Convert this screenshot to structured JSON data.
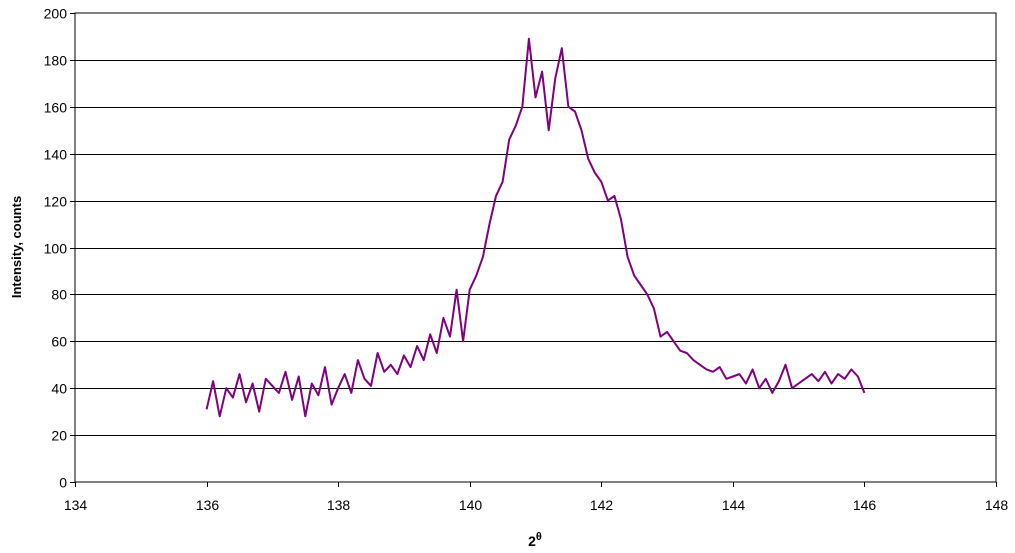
{
  "chart_data": {
    "type": "line",
    "title": "",
    "xlabel": "2",
    "xlabel_superscript": "θ",
    "ylabel": "Intensity, counts",
    "xlim": [
      134,
      148
    ],
    "ylim": [
      0,
      200
    ],
    "x_ticks": [
      134,
      136,
      138,
      140,
      142,
      144,
      146,
      148
    ],
    "y_ticks": [
      0,
      20,
      40,
      60,
      80,
      100,
      120,
      140,
      160,
      180,
      200
    ],
    "grid": "horizontal",
    "legend": "none",
    "series": [
      {
        "color": "#800080",
        "x": [
          136.0,
          136.1,
          136.2,
          136.3,
          136.4,
          136.5,
          136.6,
          136.7,
          136.8,
          136.9,
          137.0,
          137.1,
          137.2,
          137.3,
          137.4,
          137.5,
          137.6,
          137.7,
          137.8,
          137.9,
          138.0,
          138.1,
          138.2,
          138.3,
          138.4,
          138.5,
          138.6,
          138.7,
          138.8,
          138.9,
          139.0,
          139.1,
          139.2,
          139.3,
          139.4,
          139.5,
          139.6,
          139.7,
          139.8,
          139.9,
          140.0,
          140.1,
          140.2,
          140.3,
          140.4,
          140.5,
          140.6,
          140.7,
          140.8,
          140.9,
          141.0,
          141.1,
          141.2,
          141.3,
          141.4,
          141.5,
          141.6,
          141.7,
          141.8,
          141.9,
          142.0,
          142.1,
          142.2,
          142.3,
          142.4,
          142.5,
          142.6,
          142.7,
          142.8,
          142.9,
          143.0,
          143.1,
          143.2,
          143.3,
          143.4,
          143.5,
          143.6,
          143.7,
          143.8,
          143.9,
          144.0,
          144.1,
          144.2,
          144.3,
          144.4,
          144.5,
          144.6,
          144.7,
          144.8,
          144.9,
          145.0,
          145.1,
          145.2,
          145.3,
          145.4,
          145.5,
          145.6,
          145.7,
          145.8,
          145.9,
          146.0
        ],
        "values": [
          31,
          43,
          28,
          40,
          36,
          46,
          34,
          42,
          30,
          44,
          41,
          38,
          47,
          35,
          45,
          28,
          42,
          37,
          49,
          33,
          40,
          46,
          38,
          52,
          44,
          41,
          55,
          47,
          50,
          46,
          54,
          49,
          58,
          52,
          63,
          55,
          70,
          62,
          82,
          60,
          82,
          88,
          96,
          110,
          122,
          128,
          146,
          152,
          160,
          189,
          164,
          175,
          150,
          172,
          185,
          160,
          158,
          150,
          138,
          132,
          128,
          120,
          122,
          112,
          96,
          88,
          84,
          80,
          74,
          62,
          64,
          60,
          56,
          55,
          52,
          50,
          48,
          47,
          49,
          44,
          45,
          46,
          42,
          48,
          40,
          44,
          38,
          43,
          50,
          40,
          42,
          44,
          46,
          43,
          47,
          42,
          46,
          44,
          48,
          45,
          38
        ]
      }
    ]
  }
}
